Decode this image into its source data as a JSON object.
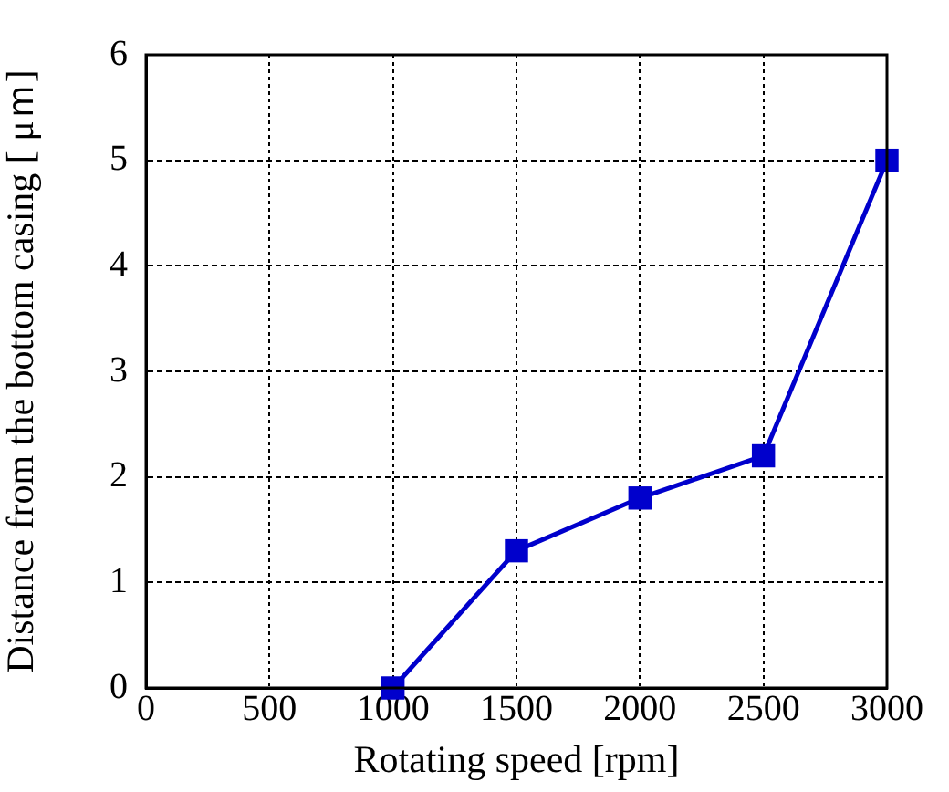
{
  "chart_data": {
    "type": "line",
    "xlabel": "Rotating speed [rpm]",
    "ylabel": "Distance from the bottom casing [ μｍ]",
    "x": [
      1000,
      1500,
      2000,
      2500,
      3000
    ],
    "series": [
      {
        "color": "#0000cc",
        "values": [
          0,
          1.3,
          1.8,
          2.2,
          5
        ]
      }
    ],
    "xlim": [
      0,
      3000
    ],
    "xticks": [
      0,
      500,
      1000,
      1500,
      2000,
      2500,
      3000
    ],
    "ylim": [
      0,
      6
    ],
    "yticks": [
      0,
      1,
      2,
      3,
      4,
      5,
      6
    ],
    "grid": true,
    "legend": false,
    "marker": "square",
    "line_style": "solid"
  }
}
